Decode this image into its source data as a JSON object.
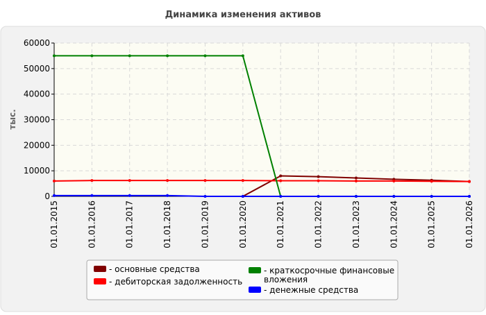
{
  "chart_data": {
    "type": "line",
    "title": "Динамика изменения активов",
    "y_label": "тыс.",
    "categories": [
      "01.01.2015",
      "01.01.2016",
      "01.01.2017",
      "01.01.2018",
      "01.01.2019",
      "01.01.2020",
      "01.01.2021",
      "01.01.2022",
      "01.01.2023",
      "01.01.2024",
      "01.01.2025",
      "01.01.2026"
    ],
    "series": [
      {
        "name": "основные средства",
        "color": "#800000",
        "values": [
          null,
          null,
          null,
          null,
          null,
          0,
          8000,
          7700,
          7200,
          6700,
          6300,
          5800
        ]
      },
      {
        "name": "дебиторская задолженность",
        "color": "#ff0000",
        "values": [
          6000,
          6200,
          6200,
          6200,
          6200,
          6200,
          6100,
          6100,
          6000,
          6000,
          5900,
          5800
        ]
      },
      {
        "name": "краткосрочные финансовые вложения",
        "color": "#008000",
        "values": [
          55000,
          55000,
          55000,
          55000,
          55000,
          55000,
          0,
          0,
          0,
          0,
          0,
          0
        ]
      },
      {
        "name": "денежные средства",
        "color": "#0000ff",
        "values": [
          300,
          300,
          300,
          300,
          0,
          0,
          0,
          0,
          0,
          0,
          0,
          0
        ]
      }
    ],
    "ylim": [
      0,
      60000
    ],
    "yticks": [
      0,
      10000,
      20000,
      30000,
      40000,
      50000,
      60000
    ],
    "grid": true,
    "legend": "bottom"
  }
}
